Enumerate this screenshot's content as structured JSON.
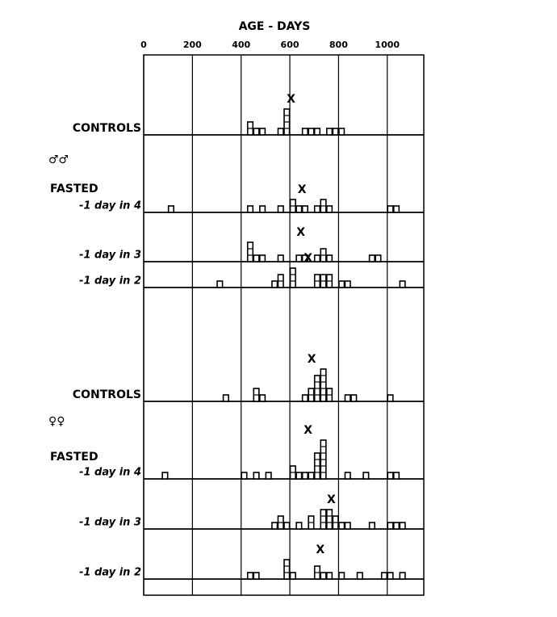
{
  "chart_data": {
    "type": "histogram",
    "title": "AGE - DAYS",
    "mean_marker": "X",
    "xlim": [
      0,
      1150
    ],
    "xticks": [
      0,
      200,
      400,
      600,
      800,
      1000
    ],
    "bin_width": 25,
    "grid": true,
    "groups": [
      {
        "symbol": "♂♂",
        "label": "FASTED"
      },
      {
        "symbol": "♀♀",
        "label": "FASTED"
      }
    ],
    "panels": [
      {
        "label": "CONTROLS",
        "x": [
          425,
          450,
          475,
          550,
          575,
          650,
          675,
          700,
          750,
          775,
          800
        ],
        "values": [
          2,
          1,
          1,
          1,
          4,
          1,
          1,
          1,
          1,
          1,
          1
        ],
        "mean": 605
      },
      {
        "label": "-1 day in 4",
        "x": [
          100,
          425,
          475,
          550,
          600,
          625,
          650,
          700,
          725,
          750,
          1000,
          1025
        ],
        "values": [
          1,
          1,
          1,
          1,
          2,
          1,
          1,
          1,
          2,
          1,
          1,
          1
        ],
        "mean": 650
      },
      {
        "label": "-1 day in 3",
        "x": [
          425,
          450,
          475,
          550,
          625,
          650,
          700,
          725,
          750,
          925,
          950
        ],
        "values": [
          3,
          1,
          1,
          1,
          1,
          1,
          1,
          2,
          1,
          1,
          1
        ],
        "mean": 645
      },
      {
        "label": "-1 day in 2",
        "x": [
          300,
          525,
          550,
          600,
          700,
          725,
          750,
          800,
          825,
          1050
        ],
        "values": [
          1,
          1,
          2,
          3,
          2,
          2,
          2,
          1,
          1,
          1
        ],
        "mean": 675
      },
      {
        "label": "CONTROLS",
        "x": [
          325,
          450,
          475,
          650,
          675,
          700,
          725,
          750,
          825,
          850,
          1000
        ],
        "values": [
          1,
          2,
          1,
          1,
          2,
          4,
          5,
          2,
          1,
          1,
          1
        ],
        "mean": 690
      },
      {
        "label": "-1 day in 4",
        "x": [
          75,
          400,
          450,
          500,
          600,
          625,
          650,
          675,
          700,
          725,
          825,
          900,
          1000,
          1025
        ],
        "values": [
          1,
          1,
          1,
          1,
          2,
          1,
          1,
          1,
          4,
          6,
          1,
          1,
          1,
          1
        ],
        "mean": 675
      },
      {
        "label": "-1 day in 3",
        "x": [
          525,
          550,
          575,
          625,
          675,
          725,
          750,
          775,
          800,
          825,
          925,
          1000,
          1025,
          1050
        ],
        "values": [
          1,
          2,
          1,
          1,
          2,
          3,
          3,
          2,
          1,
          1,
          1,
          1,
          1,
          1
        ],
        "mean": 770
      },
      {
        "label": "-1 day in 2",
        "x": [
          425,
          450,
          575,
          600,
          700,
          725,
          750,
          800,
          875,
          975,
          1000,
          1050
        ],
        "values": [
          1,
          1,
          3,
          1,
          2,
          1,
          1,
          1,
          1,
          1,
          1,
          1
        ],
        "mean": 725
      }
    ]
  }
}
